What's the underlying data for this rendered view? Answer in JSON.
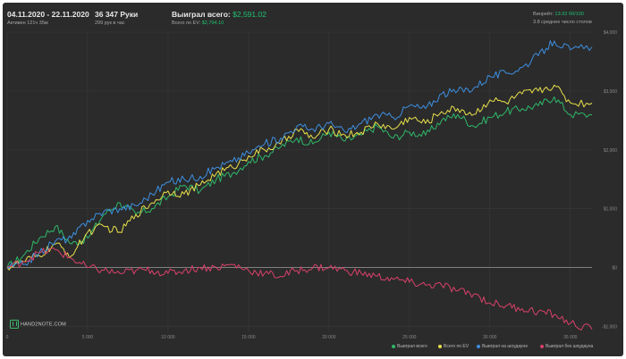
{
  "header": {
    "date_range": "04.11.2020 - 22.11.2020",
    "active_time": "Активен 121ч 35м",
    "hands_count": "36 347 Руки",
    "hands_per_hour": "299 рук в час",
    "won_label": "Выиграл всего:",
    "won_value": "$2,591.02",
    "ev_label": "Всего по EV:",
    "ev_value": "$2,794.10",
    "winrate_label": "Винрейт:",
    "winrate_value": "13.93 бб/100",
    "avg_tables": "3.8 среднее число столов"
  },
  "logo_text": "HAND2NOTE.COM",
  "colors": {
    "background": "#2b2b2b",
    "won_total": "#2eb86a",
    "by_ev": "#e8e04a",
    "won_showdown": "#3d8fe0",
    "won_no_showdown": "#d9406a",
    "positive": "#20c070"
  },
  "chart_data": {
    "type": "line",
    "xlim": [
      0,
      36347
    ],
    "ylim": [
      -1100,
      4000
    ],
    "x_ticks": [
      0,
      5000,
      10000,
      15000,
      20000,
      25000,
      30000,
      35000
    ],
    "x_tick_labels": [
      "0",
      "5 000",
      "10 000",
      "15 000",
      "20 000",
      "25 000",
      "30 000",
      "35 000"
    ],
    "y_ticks": [
      4000,
      3000,
      2000,
      1000,
      0,
      -1000
    ],
    "y_tick_labels": [
      "$4,000",
      "$3,000",
      "$2,000",
      "$1,000",
      "$0",
      "-$1,000"
    ],
    "grid": true,
    "legend_position": "bottom-right",
    "series": [
      {
        "name": "Выиграл всего",
        "color": "#2eb86a",
        "x": [
          0,
          1000,
          2000,
          3000,
          4000,
          5000,
          6000,
          7000,
          8000,
          9000,
          10000,
          11000,
          12000,
          13000,
          14000,
          15000,
          16000,
          17000,
          18000,
          19000,
          20000,
          21000,
          22000,
          23000,
          24000,
          25000,
          26000,
          27000,
          28000,
          29000,
          30000,
          31000,
          32000,
          33000,
          34000,
          35000,
          36347
        ],
        "values": [
          0,
          200,
          500,
          700,
          400,
          500,
          900,
          1100,
          900,
          1000,
          1200,
          1400,
          1300,
          1500,
          1600,
          1800,
          1900,
          2050,
          2200,
          2100,
          2300,
          2150,
          2250,
          2400,
          2200,
          2300,
          2250,
          2500,
          2600,
          2400,
          2550,
          2650,
          2700,
          2750,
          2900,
          2600,
          2591
        ]
      },
      {
        "name": "Всего по EV",
        "color": "#e8e04a",
        "x": [
          0,
          1000,
          2000,
          3000,
          4000,
          5000,
          6000,
          7000,
          8000,
          9000,
          10000,
          11000,
          12000,
          13000,
          14000,
          15000,
          16000,
          17000,
          18000,
          19000,
          20000,
          21000,
          22000,
          23000,
          24000,
          25000,
          26000,
          27000,
          28000,
          29000,
          30000,
          31000,
          32000,
          33000,
          34000,
          35000,
          36347
        ],
        "values": [
          0,
          100,
          200,
          400,
          200,
          600,
          700,
          600,
          900,
          1100,
          1300,
          1250,
          1400,
          1600,
          1700,
          1900,
          2000,
          2100,
          2350,
          2200,
          2350,
          2250,
          2300,
          2450,
          2350,
          2550,
          2450,
          2650,
          2700,
          2600,
          2850,
          2800,
          2950,
          3000,
          3100,
          2800,
          2794
        ]
      },
      {
        "name": "Выиграл на шоудауне",
        "color": "#3d8fe0",
        "x": [
          0,
          1000,
          2000,
          3000,
          4000,
          5000,
          6000,
          7000,
          8000,
          9000,
          10000,
          11000,
          12000,
          13000,
          14000,
          15000,
          16000,
          17000,
          18000,
          19000,
          20000,
          21000,
          22000,
          23000,
          24000,
          25000,
          26000,
          27000,
          28000,
          29000,
          30000,
          31000,
          32000,
          33000,
          34000,
          35000,
          36347
        ],
        "values": [
          0,
          50,
          250,
          450,
          500,
          800,
          950,
          1000,
          1050,
          1250,
          1450,
          1500,
          1550,
          1700,
          1800,
          1950,
          2100,
          2200,
          2400,
          2350,
          2450,
          2300,
          2450,
          2600,
          2550,
          2750,
          2700,
          2950,
          3000,
          3050,
          3250,
          3300,
          3400,
          3600,
          3850,
          3700,
          3750
        ]
      },
      {
        "name": "Выиграл без шоудауна",
        "color": "#d9406a",
        "x": [
          0,
          1000,
          2000,
          3000,
          4000,
          5000,
          6000,
          7000,
          8000,
          9000,
          10000,
          11000,
          12000,
          13000,
          14000,
          15000,
          16000,
          17000,
          18000,
          19000,
          20000,
          21000,
          22000,
          23000,
          24000,
          25000,
          26000,
          27000,
          28000,
          29000,
          30000,
          31000,
          32000,
          33000,
          34000,
          35000,
          36347
        ],
        "values": [
          0,
          100,
          250,
          300,
          150,
          0,
          -50,
          -100,
          -50,
          -50,
          -100,
          -50,
          0,
          0,
          50,
          -50,
          -100,
          -150,
          -50,
          0,
          0,
          -50,
          -100,
          -150,
          -200,
          -250,
          -300,
          -300,
          -400,
          -450,
          -600,
          -650,
          -700,
          -750,
          -800,
          -950,
          -1050
        ]
      }
    ]
  }
}
